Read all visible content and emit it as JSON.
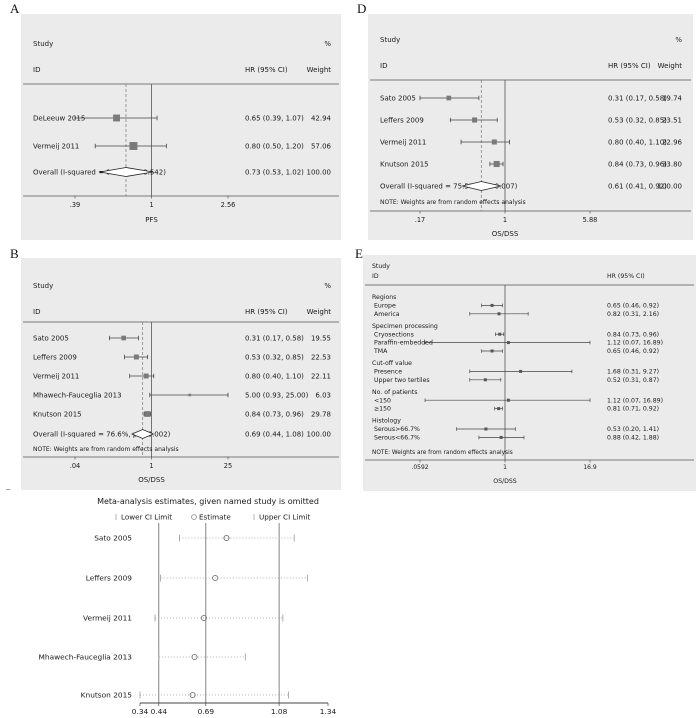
{
  "figure_labels": {
    "a": "A",
    "b": "B",
    "c": "C",
    "d": "D",
    "e": "E"
  },
  "chart_data": [
    {
      "panel": "A",
      "type": "forest",
      "columns": {
        "study": "Study",
        "id": "ID",
        "percent": "%",
        "hr": "HR (95% CI)",
        "weight": "Weight"
      },
      "studies": [
        {
          "name": "DeLeeuw 2015",
          "hr": 0.65,
          "lo": 0.39,
          "hi": 1.07,
          "hr_text": "0.65 (0.39, 1.07)",
          "weight": 42.94,
          "weight_text": "42.94"
        },
        {
          "name": "Vermeij 2011",
          "hr": 0.8,
          "lo": 0.5,
          "hi": 1.2,
          "hr_text": "0.80 (0.50, 1.20)",
          "weight": 57.06,
          "weight_text": "57.06"
        }
      ],
      "overall": {
        "name": "Overall  (I-squared = 0.0%, p = 0.542)",
        "hr": 0.73,
        "lo": 0.53,
        "hi": 1.02,
        "hr_text": "0.73 (0.53, 1.02)",
        "weight_text": "100.00"
      },
      "note": "",
      "axis": {
        "scale": "log",
        "min": 0.39,
        "max": 2.56,
        "ticks": [
          {
            "v": 0.39,
            "t": ".39"
          },
          {
            "v": 1,
            "t": "1"
          },
          {
            "v": 2.56,
            "t": "2.56"
          }
        ],
        "label": "PFS"
      }
    },
    {
      "panel": "B",
      "type": "forest",
      "columns": {
        "study": "Study",
        "id": "ID",
        "percent": "%",
        "hr": "HR (95% CI)",
        "weight": "Weight"
      },
      "studies": [
        {
          "name": "Sato 2005",
          "hr": 0.31,
          "lo": 0.17,
          "hi": 0.58,
          "hr_text": "0.31 (0.17, 0.58)",
          "weight": 19.55,
          "weight_text": "19.55"
        },
        {
          "name": "Leffers 2009",
          "hr": 0.53,
          "lo": 0.32,
          "hi": 0.85,
          "hr_text": "0.53 (0.32, 0.85)",
          "weight": 22.53,
          "weight_text": "22.53"
        },
        {
          "name": "Vermeij 2011",
          "hr": 0.8,
          "lo": 0.4,
          "hi": 1.1,
          "hr_text": "0.80 (0.40, 1.10)",
          "weight": 22.11,
          "weight_text": "22.11"
        },
        {
          "name": "Mhawech-Fauceglia 2013",
          "hr": 5.0,
          "lo": 0.93,
          "hi": 25.0,
          "hr_text": "5.00 (0.93, 25.00)",
          "weight": 6.03,
          "weight_text": "6.03"
        },
        {
          "name": "Knutson 2015",
          "hr": 0.84,
          "lo": 0.73,
          "hi": 0.96,
          "hr_text": "0.84 (0.73, 0.96)",
          "weight": 29.78,
          "weight_text": "29.78"
        }
      ],
      "overall": {
        "name": "Overall  (I-squared = 76.6%, p = 0.002)",
        "hr": 0.69,
        "lo": 0.44,
        "hi": 1.08,
        "hr_text": "0.69 (0.44, 1.08)",
        "weight_text": "100.00"
      },
      "note": "NOTE: Weights are from random effects analysis",
      "axis": {
        "scale": "log",
        "min": 0.04,
        "max": 25,
        "ticks": [
          {
            "v": 0.04,
            "t": ".04"
          },
          {
            "v": 1,
            "t": "1"
          },
          {
            "v": 25,
            "t": "25"
          }
        ],
        "label": "OS/DSS"
      }
    },
    {
      "panel": "C",
      "type": "influence",
      "title": "Meta-analysis estimates, given named study is omitted",
      "legend": [
        {
          "marker": "bar",
          "label": "Lower CI Limit"
        },
        {
          "marker": "circle",
          "label": "Estimate"
        },
        {
          "marker": "bar",
          "label": "Upper CI Limit"
        }
      ],
      "studies": [
        {
          "name": "Sato 2005",
          "lo": 0.55,
          "est": 0.8,
          "hi": 1.16
        },
        {
          "name": "Leffers 2009",
          "lo": 0.45,
          "est": 0.74,
          "hi": 1.23
        },
        {
          "name": "Vermeij 2011",
          "lo": 0.42,
          "est": 0.68,
          "hi": 1.1
        },
        {
          "name": "Mhawech-Fauceglia 2013",
          "lo": 0.44,
          "est": 0.63,
          "hi": 0.9
        },
        {
          "name": "Knutson 2015",
          "lo": 0.34,
          "est": 0.62,
          "hi": 1.13
        }
      ],
      "axis": {
        "scale": "linear",
        "min": 0.34,
        "max": 1.34,
        "ticks": [
          {
            "v": 0.34,
            "t": "0.34"
          },
          {
            "v": 0.44,
            "t": "0.44"
          },
          {
            "v": 0.69,
            "t": "0.69"
          },
          {
            "v": 1.08,
            "t": "1.08"
          },
          {
            "v": 1.34,
            "t": "1.34"
          }
        ],
        "ref_lines": [
          0.44,
          0.69,
          1.08
        ]
      }
    },
    {
      "panel": "D",
      "type": "forest",
      "columns": {
        "study": "Study",
        "id": "ID",
        "percent": "%",
        "hr": "HR (95% CI)",
        "weight": "Weight"
      },
      "studies": [
        {
          "name": "Sato 2005",
          "hr": 0.31,
          "lo": 0.17,
          "hi": 0.58,
          "hr_text": "0.31 (0.17, 0.58)",
          "weight": 19.74,
          "weight_text": "19.74"
        },
        {
          "name": "Leffers 2009",
          "hr": 0.53,
          "lo": 0.32,
          "hi": 0.85,
          "hr_text": "0.53 (0.32, 0.85)",
          "weight": 23.51,
          "weight_text": "23.51"
        },
        {
          "name": "Vermeij 2011",
          "hr": 0.8,
          "lo": 0.4,
          "hi": 1.1,
          "hr_text": "0.80 (0.40, 1.10)",
          "weight": 22.96,
          "weight_text": "22.96"
        },
        {
          "name": "Knutson 2015",
          "hr": 0.84,
          "lo": 0.73,
          "hi": 0.96,
          "hr_text": "0.84 (0.73, 0.96)",
          "weight": 33.8,
          "weight_text": "33.80"
        }
      ],
      "overall": {
        "name": "Overall  (I-squared = 75.5%, p = 0.007)",
        "hr": 0.61,
        "lo": 0.41,
        "hi": 0.92,
        "hr_text": "0.61 (0.41, 0.92)",
        "weight_text": "100.00"
      },
      "note": "NOTE: Weights are from random effects analysis",
      "axis": {
        "scale": "log",
        "min": 0.17,
        "max": 5.88,
        "ticks": [
          {
            "v": 0.17,
            "t": ".17"
          },
          {
            "v": 1,
            "t": "1"
          },
          {
            "v": 5.88,
            "t": "5.88"
          }
        ],
        "label": "OS/DSS"
      }
    },
    {
      "panel": "E",
      "type": "forest-subgroup",
      "columns": {
        "study": "Study",
        "id": "ID",
        "hr": "HR (95% CI)"
      },
      "rows": [
        {
          "type": "group",
          "name": "Regions"
        },
        {
          "type": "study",
          "name": "Europe",
          "hr": 0.65,
          "lo": 0.46,
          "hi": 0.92,
          "hr_text": "0.65 (0.46, 0.92)"
        },
        {
          "type": "study",
          "name": "America",
          "hr": 0.82,
          "lo": 0.31,
          "hi": 2.16,
          "hr_text": "0.82 (0.31, 2.16)"
        },
        {
          "type": "group",
          "name": "Specimen processing"
        },
        {
          "type": "study",
          "name": "Cryosections",
          "hr": 0.84,
          "lo": 0.73,
          "hi": 0.96,
          "hr_text": "0.84 (0.73, 0.96)"
        },
        {
          "type": "study",
          "name": "Paraffin-embedded",
          "hr": 1.12,
          "lo": 0.07,
          "hi": 16.89,
          "hr_text": "1.12 (0.07, 16.89)"
        },
        {
          "type": "study",
          "name": "TMA",
          "hr": 0.65,
          "lo": 0.46,
          "hi": 0.92,
          "hr_text": "0.65 (0.46, 0.92)"
        },
        {
          "type": "group",
          "name": "Cut-off value"
        },
        {
          "type": "study",
          "name": "Presence",
          "hr": 1.68,
          "lo": 0.31,
          "hi": 9.27,
          "hr_text": "1.68 (0.31, 9.27)"
        },
        {
          "type": "study",
          "name": "Upper two tertiles",
          "hr": 0.52,
          "lo": 0.31,
          "hi": 0.87,
          "hr_text": "0.52 (0.31, 0.87)"
        },
        {
          "type": "group",
          "name": "No. of patients"
        },
        {
          "type": "study",
          "name": "<150",
          "hr": 1.12,
          "lo": 0.07,
          "hi": 16.89,
          "hr_text": "1.12 (0.07, 16.89)"
        },
        {
          "type": "study",
          "name": "≥150",
          "hr": 0.81,
          "lo": 0.71,
          "hi": 0.92,
          "hr_text": "0.81 (0.71, 0.92)"
        },
        {
          "type": "group",
          "name": "Histology"
        },
        {
          "type": "study",
          "name": "Serous>66.7%",
          "hr": 0.53,
          "lo": 0.2,
          "hi": 1.41,
          "hr_text": "0.53 (0.20, 1.41)"
        },
        {
          "type": "study",
          "name": "Serous<66.7%",
          "hr": 0.88,
          "lo": 0.42,
          "hi": 1.88,
          "hr_text": "0.88 (0.42, 1.88)"
        }
      ],
      "note": "NOTE: Weights are from random effects analysis",
      "axis": {
        "scale": "log",
        "min": 0.0592,
        "max": 16.9,
        "ticks": [
          {
            "v": 0.0592,
            "t": ".0592"
          },
          {
            "v": 1,
            "t": "1"
          },
          {
            "v": 16.9,
            "t": "16.9"
          }
        ],
        "label": "OS/DSS"
      }
    }
  ]
}
